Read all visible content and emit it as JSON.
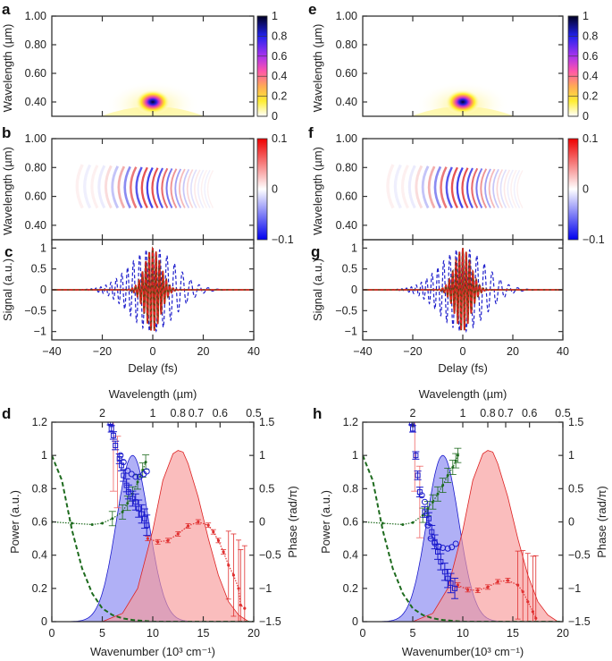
{
  "colors": {
    "blue_fill": "#7b7bf0",
    "red_fill": "#f79a9a",
    "blue": "#1a1acc",
    "red": "#dd2222",
    "green": "#1e6b1e",
    "phase_red": "#e03030",
    "brown": "#7a3a10"
  },
  "chart_data": [
    {
      "panel": "a",
      "type": "heatmap",
      "ylabel": "Wavelength (µm)",
      "xlim": [
        -40,
        40
      ],
      "ylim": [
        0.3,
        1.0
      ],
      "yticks": [
        "0.40",
        "0.60",
        "0.80",
        "1.00"
      ],
      "ytick_values": [
        0.4,
        0.6,
        0.8,
        1.0
      ],
      "colorbar": {
        "ticks": [
          "0",
          "0.2",
          "0.4",
          "0.6",
          "0.8",
          "1"
        ],
        "range": [
          0,
          1
        ],
        "colormap": "white-yellow-red-magenta-blue-black"
      },
      "peak": {
        "delay": 0,
        "wavelength": 0.4,
        "value": 1
      }
    },
    {
      "panel": "b",
      "type": "heatmap",
      "ylabel": "Wavelength (µm)",
      "xlim": [
        -40,
        40
      ],
      "ylim": [
        0.3,
        1.0
      ],
      "yticks": [
        "0.40",
        "0.60",
        "0.80",
        "1.00"
      ],
      "ytick_values": [
        0.4,
        0.6,
        0.8,
        1.0
      ],
      "colorbar": {
        "ticks": [
          "-0.1",
          "0",
          "0.1"
        ],
        "tick_labels": [
          "−0.1",
          "0",
          "0.1"
        ],
        "range": [
          -0.1,
          0.1
        ],
        "colormap": "blue-white-red"
      },
      "fringe_region": {
        "delay": [
          -30,
          22
        ],
        "wavelength": [
          0.5,
          0.8
        ]
      }
    },
    {
      "panel": "c",
      "type": "line",
      "xlabel": "Delay (fs)",
      "ylabel": "Signal (a.u.)",
      "xlim": [
        -40,
        40
      ],
      "ylim": [
        -1.2,
        1.2
      ],
      "xticks": [
        "−40",
        "−20",
        "0",
        "20",
        "40"
      ],
      "xtick_values": [
        -40,
        -20,
        0,
        20,
        40
      ],
      "yticks": [
        "−1",
        "−0.5",
        "0",
        "0.5",
        "1"
      ],
      "ytick_values": [
        -1,
        -0.5,
        0,
        0.5,
        1
      ],
      "series": [
        {
          "name": "dashed-blue",
          "style": "dashed",
          "color": "#2020cc",
          "envelope_width_fs": 12,
          "period_fs": 2.7,
          "amplitude": 1.0
        },
        {
          "name": "solid-brown",
          "style": "solid",
          "color": "#7a3a10",
          "envelope_width_fs": 4.5,
          "period_fs": 1.35,
          "amplitude": 1.0
        },
        {
          "name": "dashed-red",
          "style": "dashed",
          "color": "#ee2222",
          "envelope_width_fs": 4.5,
          "period_fs": 1.35,
          "amplitude": 1.0
        }
      ]
    },
    {
      "panel": "d",
      "type": "area",
      "xlabel": "Wavenumber (10³ cm⁻¹)",
      "ylabel": "Power (a.u.)",
      "y2label": "Phase (rad/π)",
      "top_xlabel": "Wavelength (µm)",
      "xlim": [
        0,
        20
      ],
      "ylim": [
        0,
        1.2
      ],
      "y2lim": [
        -1.5,
        1.5
      ],
      "xticks": [
        "0",
        "5",
        "10",
        "15",
        "20"
      ],
      "xtick_values": [
        0,
        5,
        10,
        15,
        20
      ],
      "yticks": [
        "0",
        "0.2",
        "0.4",
        "0.6",
        "0.8",
        "1",
        "1.2"
      ],
      "ytick_values": [
        0,
        0.2,
        0.4,
        0.6,
        0.8,
        1,
        1.2
      ],
      "y2ticks": [
        "−1.5",
        "−1",
        "−0.5",
        "0",
        "0.5",
        "1",
        "1.5"
      ],
      "y2tick_values": [
        -1.5,
        -1,
        -0.5,
        0,
        0.5,
        1,
        1.5
      ],
      "top_ticks": [
        "2",
        "1",
        "0.8",
        "0.7",
        "0.6",
        "0.5"
      ],
      "top_tick_wavelengths": [
        2,
        1,
        0.8,
        0.7,
        0.6,
        0.5
      ],
      "blue_spectrum": {
        "center": 8.0,
        "sigma": 1.6,
        "peak": 1.0
      },
      "red_spectrum": {
        "points": [
          [
            5,
            0
          ],
          [
            7,
            0.05
          ],
          [
            8.5,
            0.2
          ],
          [
            10,
            0.55
          ],
          [
            11,
            0.85
          ],
          [
            12,
            1.01
          ],
          [
            12.5,
            1.03
          ],
          [
            13,
            1.02
          ],
          [
            13.5,
            0.95
          ],
          [
            14.5,
            0.75
          ],
          [
            15.5,
            0.5
          ],
          [
            16.5,
            0.28
          ],
          [
            17.5,
            0.12
          ],
          [
            18.5,
            0.04
          ],
          [
            19.5,
            0.0
          ]
        ]
      },
      "green_dashed": {
        "points": [
          [
            0,
            1.0
          ],
          [
            1,
            0.85
          ],
          [
            2,
            0.55
          ],
          [
            3,
            0.32
          ],
          [
            4,
            0.17
          ],
          [
            5,
            0.08
          ],
          [
            6,
            0.04
          ],
          [
            7,
            0.02
          ],
          [
            8,
            0.01
          ],
          [
            10,
            0.0
          ],
          [
            20,
            0.0
          ]
        ]
      },
      "green_phase": {
        "points": [
          [
            0,
            0
          ],
          [
            2,
            -0.02
          ],
          [
            4,
            -0.04
          ],
          [
            5,
            -0.02
          ],
          [
            6,
            0.05
          ],
          [
            7,
            0.15
          ],
          [
            7.5,
            0.28
          ],
          [
            8,
            0.42
          ],
          [
            8.5,
            0.6
          ],
          [
            9,
            0.78
          ],
          [
            9.3,
            0.9
          ]
        ]
      },
      "red_phase": {
        "points": [
          [
            9.5,
            -0.25
          ],
          [
            10.5,
            -0.3
          ],
          [
            11.5,
            -0.28
          ],
          [
            12.5,
            -0.18
          ],
          [
            13.5,
            -0.06
          ],
          [
            14.5,
            0
          ],
          [
            15.5,
            -0.05
          ],
          [
            16,
            -0.15
          ],
          [
            16.5,
            -0.28
          ],
          [
            17,
            -0.45
          ],
          [
            17.5,
            -0.65
          ],
          [
            18,
            -0.8
          ],
          [
            18.5,
            -1.0
          ],
          [
            18.7,
            -1.25
          ],
          [
            19.1,
            -1.3
          ]
        ]
      },
      "blue_squares": {
        "points": [
          [
            5.8,
            1.5
          ],
          [
            5.9,
            1.4
          ],
          [
            6.1,
            1.3
          ],
          [
            6.3,
            1.15
          ],
          [
            6.7,
            0.95
          ],
          [
            6.9,
            0.85
          ],
          [
            7.1,
            0.7
          ],
          [
            7.4,
            0.55
          ],
          [
            7.6,
            0.45
          ],
          [
            8.0,
            0.35
          ],
          [
            8.3,
            0.3
          ],
          [
            8.6,
            0.2
          ],
          [
            8.9,
            0.12
          ],
          [
            9.2,
            0.05
          ],
          [
            9.4,
            -0.05
          ]
        ]
      },
      "blue_circles": {
        "points": [
          [
            6.8,
            1.0
          ],
          [
            7.1,
            0.9
          ],
          [
            7.5,
            0.77
          ],
          [
            7.9,
            0.72
          ],
          [
            8.3,
            0.68
          ],
          [
            8.7,
            0.68
          ],
          [
            9.1,
            0.72
          ],
          [
            9.4,
            0.76
          ]
        ]
      }
    },
    {
      "panel": "h",
      "type": "area",
      "xlabel": "Wavenumber(10³ cm⁻¹)",
      "ylabel": "Power (a.u.)",
      "y2label": "Phase (rad/π)",
      "top_xlabel": "Wavelength (µm)",
      "xlim": [
        0,
        20
      ],
      "ylim": [
        0,
        1.2
      ],
      "y2lim": [
        -1.5,
        1.5
      ],
      "xticks": [
        "0",
        "5",
        "10",
        "15",
        "20"
      ],
      "xtick_values": [
        0,
        5,
        10,
        15,
        20
      ],
      "yticks": [
        "0",
        "0.2",
        "0.4",
        "0.6",
        "0.8",
        "1",
        "1.2"
      ],
      "ytick_values": [
        0,
        0.2,
        0.4,
        0.6,
        0.8,
        1,
        1.2
      ],
      "y2ticks": [
        "−1.5",
        "−1",
        "−0.5",
        "0",
        "0.5",
        "1",
        "1.5"
      ],
      "y2tick_values": [
        -1.5,
        -1,
        -0.5,
        0,
        0.5,
        1,
        1.5
      ],
      "top_ticks": [
        "2",
        "1",
        "0.8",
        "0.7",
        "0.6",
        "0.5"
      ],
      "top_tick_wavelengths": [
        2,
        1,
        0.8,
        0.7,
        0.6,
        0.5
      ],
      "blue_spectrum": {
        "center": 8.0,
        "sigma": 1.6,
        "peak": 1.0
      },
      "red_spectrum": {
        "points": [
          [
            5,
            0
          ],
          [
            7,
            0.05
          ],
          [
            8.5,
            0.2
          ],
          [
            10,
            0.55
          ],
          [
            11,
            0.85
          ],
          [
            12,
            1.01
          ],
          [
            12.5,
            1.03
          ],
          [
            13,
            1.02
          ],
          [
            13.5,
            0.95
          ],
          [
            14.5,
            0.75
          ],
          [
            15.5,
            0.5
          ],
          [
            16.5,
            0.28
          ],
          [
            17.5,
            0.12
          ],
          [
            18.5,
            0.04
          ],
          [
            19.5,
            0.0
          ]
        ]
      },
      "green_dashed": {
        "points": [
          [
            0,
            1.0
          ],
          [
            1,
            0.85
          ],
          [
            2,
            0.55
          ],
          [
            3,
            0.32
          ],
          [
            4,
            0.17
          ],
          [
            5,
            0.08
          ],
          [
            6,
            0.04
          ],
          [
            7,
            0.02
          ],
          [
            8,
            0.01
          ],
          [
            10,
            0.0
          ],
          [
            20,
            0.0
          ]
        ]
      },
      "green_phase": {
        "points": [
          [
            0,
            0
          ],
          [
            2,
            -0.02
          ],
          [
            4,
            -0.04
          ],
          [
            5,
            -0.01
          ],
          [
            6,
            0.1
          ],
          [
            6.5,
            0.2
          ],
          [
            7,
            0.3
          ],
          [
            7.5,
            0.42
          ],
          [
            8,
            0.55
          ],
          [
            8.5,
            0.7
          ],
          [
            9,
            0.82
          ],
          [
            9.3,
            0.92
          ],
          [
            9.5,
            1.0
          ]
        ]
      },
      "red_phase": {
        "points": [
          [
            9.5,
            -0.95
          ],
          [
            10.5,
            -1.02
          ],
          [
            11.5,
            -1.03
          ],
          [
            12.5,
            -0.98
          ],
          [
            13.5,
            -0.9
          ],
          [
            14.5,
            -0.88
          ],
          [
            15.5,
            -0.95
          ],
          [
            16,
            -1.05
          ],
          [
            16.5,
            -1.2
          ],
          [
            17,
            -1.35
          ],
          [
            17.3,
            -1.45
          ]
        ]
      },
      "blue_squares": {
        "points": [
          [
            4.9,
            1.5
          ],
          [
            5.0,
            1.4
          ],
          [
            5.3,
            1.0
          ],
          [
            5.5,
            0.7
          ],
          [
            5.7,
            0.45
          ],
          [
            6.2,
            0.15
          ],
          [
            6.6,
            0.05
          ],
          [
            6.9,
            -0.15
          ],
          [
            7.2,
            -0.3
          ],
          [
            7.5,
            -0.45
          ],
          [
            7.8,
            -0.6
          ],
          [
            8.2,
            -0.75
          ],
          [
            8.5,
            -0.85
          ],
          [
            8.8,
            -0.92
          ],
          [
            9.2,
            -1.0
          ]
        ]
      },
      "blue_circles": {
        "points": [
          [
            5.9,
            0.4
          ],
          [
            6.2,
            0.3
          ],
          [
            6.5,
            -0.05
          ],
          [
            6.8,
            -0.25
          ],
          [
            7.2,
            -0.32
          ],
          [
            7.6,
            -0.37
          ],
          [
            8.0,
            -0.39
          ],
          [
            8.5,
            -0.4
          ],
          [
            8.9,
            -0.38
          ],
          [
            9.3,
            -0.33
          ]
        ]
      }
    }
  ],
  "panels": {
    "a": {
      "letter": "a"
    },
    "b": {
      "letter": "b"
    },
    "c": {
      "letter": "c"
    },
    "d": {
      "letter": "d"
    },
    "e": {
      "letter": "e"
    },
    "f": {
      "letter": "f"
    },
    "g": {
      "letter": "g"
    },
    "h": {
      "letter": "h"
    }
  }
}
